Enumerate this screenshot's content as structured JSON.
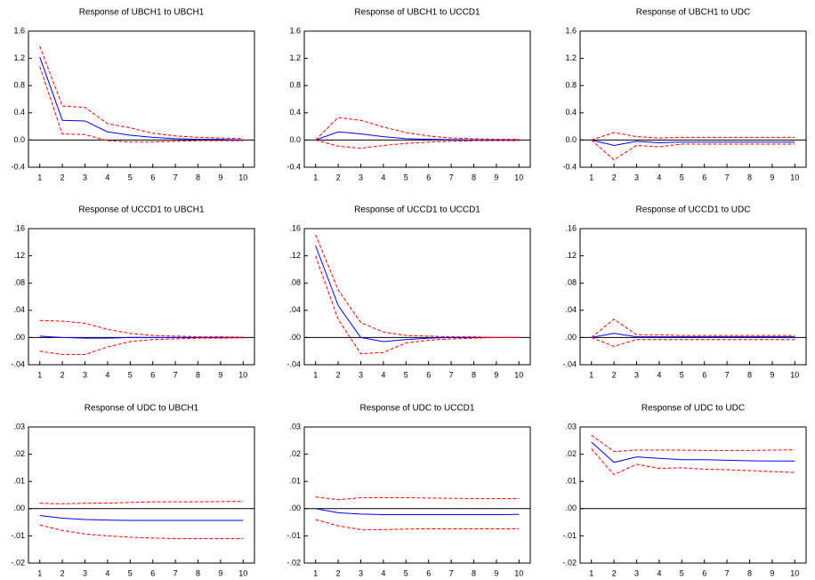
{
  "chart_data": [
    {
      "type": "line",
      "title": "Response of UBCH1 to UBCH1",
      "x": [
        1,
        2,
        3,
        4,
        5,
        6,
        7,
        8,
        9,
        10
      ],
      "xlim": [
        0.5,
        10.5
      ],
      "xticks": [
        1,
        2,
        3,
        4,
        5,
        6,
        7,
        8,
        9,
        10
      ],
      "ylim": [
        -0.4,
        1.6
      ],
      "yticks": [
        {
          "value": -0.4,
          "label": "-0.4"
        },
        {
          "value": 0,
          "label": "0.0"
        },
        {
          "value": 0.4,
          "label": "0.4"
        },
        {
          "value": 0.8,
          "label": "0.8"
        },
        {
          "value": 1.2,
          "label": "1.2"
        },
        {
          "value": 1.6,
          "label": "1.6"
        }
      ],
      "zero_line": true,
      "series": [
        {
          "color": "#0000ff",
          "dashed": false,
          "values": [
            1.22,
            0.29,
            0.28,
            0.12,
            0.07,
            0.04,
            0.02,
            0.01,
            0.01,
            0.0
          ]
        },
        {
          "color": "#ff0000",
          "dashed": true,
          "values": [
            1.38,
            0.5,
            0.48,
            0.24,
            0.18,
            0.1,
            0.06,
            0.04,
            0.03,
            0.02
          ]
        },
        {
          "color": "#ff0000",
          "dashed": true,
          "values": [
            1.08,
            0.09,
            0.08,
            -0.01,
            -0.03,
            -0.03,
            -0.02,
            -0.01,
            -0.01,
            -0.01
          ]
        }
      ]
    },
    {
      "type": "line",
      "title": "Response of UBCH1 to UCCD1",
      "x": [
        1,
        2,
        3,
        4,
        5,
        6,
        7,
        8,
        9,
        10
      ],
      "xlim": [
        0.5,
        10.5
      ],
      "xticks": [
        1,
        2,
        3,
        4,
        5,
        6,
        7,
        8,
        9,
        10
      ],
      "ylim": [
        -0.4,
        1.6
      ],
      "yticks": [
        {
          "value": -0.4,
          "label": "-0.4"
        },
        {
          "value": 0,
          "label": "0.0"
        },
        {
          "value": 0.4,
          "label": "0.4"
        },
        {
          "value": 0.8,
          "label": "0.8"
        },
        {
          "value": 1.2,
          "label": "1.2"
        },
        {
          "value": 1.6,
          "label": "1.6"
        }
      ],
      "zero_line": true,
      "series": [
        {
          "color": "#0000ff",
          "dashed": false,
          "values": [
            0,
            0.12,
            0.09,
            0.05,
            0.02,
            0.01,
            0.005,
            0,
            0,
            0
          ]
        },
        {
          "color": "#ff0000",
          "dashed": true,
          "values": [
            0,
            0.33,
            0.29,
            0.19,
            0.11,
            0.06,
            0.03,
            0.02,
            0.01,
            0.01
          ]
        },
        {
          "color": "#ff0000",
          "dashed": true,
          "values": [
            0,
            -0.09,
            -0.12,
            -0.08,
            -0.05,
            -0.03,
            -0.02,
            -0.01,
            -0.01,
            -0.01
          ]
        }
      ]
    },
    {
      "type": "line",
      "title": "Response of UBCH1 to UDC",
      "x": [
        1,
        2,
        3,
        4,
        5,
        6,
        7,
        8,
        9,
        10
      ],
      "xlim": [
        0.5,
        10.5
      ],
      "xticks": [
        1,
        2,
        3,
        4,
        5,
        6,
        7,
        8,
        9,
        10
      ],
      "ylim": [
        -0.4,
        1.6
      ],
      "yticks": [
        {
          "value": -0.4,
          "label": "-0.4"
        },
        {
          "value": 0,
          "label": "0.0"
        },
        {
          "value": 0.4,
          "label": "0.4"
        },
        {
          "value": 0.8,
          "label": "0.8"
        },
        {
          "value": 1.2,
          "label": "1.2"
        },
        {
          "value": 1.6,
          "label": "1.6"
        }
      ],
      "zero_line": true,
      "series": [
        {
          "color": "#0000ff",
          "dashed": false,
          "values": [
            0,
            -0.08,
            -0.02,
            -0.04,
            -0.03,
            -0.03,
            -0.03,
            -0.03,
            -0.03,
            -0.03
          ]
        },
        {
          "color": "#ff0000",
          "dashed": true,
          "values": [
            0,
            0.11,
            0.05,
            0.03,
            0.04,
            0.04,
            0.04,
            0.04,
            0.04,
            0.04
          ]
        },
        {
          "color": "#ff0000",
          "dashed": true,
          "values": [
            0,
            -0.29,
            -0.08,
            -0.1,
            -0.06,
            -0.06,
            -0.06,
            -0.06,
            -0.06,
            -0.06
          ]
        }
      ]
    },
    {
      "type": "line",
      "title": "Response of UCCD1 to UBCH1",
      "x": [
        1,
        2,
        3,
        4,
        5,
        6,
        7,
        8,
        9,
        10
      ],
      "xlim": [
        0.5,
        10.5
      ],
      "xticks": [
        1,
        2,
        3,
        4,
        5,
        6,
        7,
        8,
        9,
        10
      ],
      "ylim": [
        -0.04,
        0.16
      ],
      "yticks": [
        {
          "value": -0.04,
          "label": "-.04"
        },
        {
          "value": 0,
          "label": ".00"
        },
        {
          "value": 0.04,
          "label": ".04"
        },
        {
          "value": 0.08,
          "label": ".08"
        },
        {
          "value": 0.12,
          "label": ".12"
        },
        {
          "value": 0.16,
          "label": ".16"
        }
      ],
      "zero_line": true,
      "series": [
        {
          "color": "#0000ff",
          "dashed": false,
          "values": [
            0.002,
            0.0,
            -0.001,
            -0.001,
            0,
            0,
            0,
            0,
            0,
            0
          ]
        },
        {
          "color": "#ff0000",
          "dashed": true,
          "values": [
            0.025,
            0.024,
            0.021,
            0.012,
            0.006,
            0.003,
            0.002,
            0.001,
            0.001,
            0.0005
          ]
        },
        {
          "color": "#ff0000",
          "dashed": true,
          "values": [
            -0.02,
            -0.025,
            -0.025,
            -0.014,
            -0.006,
            -0.003,
            -0.002,
            -0.001,
            -0.001,
            -0.0005
          ]
        }
      ]
    },
    {
      "type": "line",
      "title": "Response of UCCD1 to UCCD1",
      "x": [
        1,
        2,
        3,
        4,
        5,
        6,
        7,
        8,
        9,
        10
      ],
      "xlim": [
        0.5,
        10.5
      ],
      "xticks": [
        1,
        2,
        3,
        4,
        5,
        6,
        7,
        8,
        9,
        10
      ],
      "ylim": [
        -0.04,
        0.16
      ],
      "yticks": [
        {
          "value": -0.04,
          "label": "-.04"
        },
        {
          "value": 0,
          "label": ".00"
        },
        {
          "value": 0.04,
          "label": ".04"
        },
        {
          "value": 0.08,
          "label": ".08"
        },
        {
          "value": 0.12,
          "label": ".12"
        },
        {
          "value": 0.16,
          "label": ".16"
        }
      ],
      "zero_line": true,
      "series": [
        {
          "color": "#0000ff",
          "dashed": false,
          "values": [
            0.135,
            0.047,
            0.0,
            -0.006,
            -0.003,
            -0.001,
            0,
            0,
            0,
            0
          ]
        },
        {
          "color": "#ff0000",
          "dashed": true,
          "values": [
            0.151,
            0.07,
            0.022,
            0.008,
            0.003,
            0.002,
            0.001,
            0.001,
            0,
            0
          ]
        },
        {
          "color": "#ff0000",
          "dashed": true,
          "values": [
            0.12,
            0.027,
            -0.024,
            -0.022,
            -0.008,
            -0.004,
            -0.002,
            -0.001,
            0,
            0
          ]
        }
      ]
    },
    {
      "type": "line",
      "title": "Response of UCCD1 to UDC",
      "x": [
        1,
        2,
        3,
        4,
        5,
        6,
        7,
        8,
        9,
        10
      ],
      "xlim": [
        0.5,
        10.5
      ],
      "xticks": [
        1,
        2,
        3,
        4,
        5,
        6,
        7,
        8,
        9,
        10
      ],
      "ylim": [
        -0.04,
        0.16
      ],
      "yticks": [
        {
          "value": -0.04,
          "label": "-.04"
        },
        {
          "value": 0,
          "label": ".00"
        },
        {
          "value": 0.04,
          "label": ".04"
        },
        {
          "value": 0.08,
          "label": ".08"
        },
        {
          "value": 0.12,
          "label": ".12"
        },
        {
          "value": 0.16,
          "label": ".16"
        }
      ],
      "zero_line": true,
      "series": [
        {
          "color": "#0000ff",
          "dashed": false,
          "values": [
            0,
            0.006,
            0.001,
            0.001,
            0.001,
            0.001,
            0.001,
            0.001,
            0.001,
            0.001
          ]
        },
        {
          "color": "#ff0000",
          "dashed": true,
          "values": [
            0,
            0.027,
            0.004,
            0.004,
            0.003,
            0.003,
            0.003,
            0.003,
            0.003,
            0.003
          ]
        },
        {
          "color": "#ff0000",
          "dashed": true,
          "values": [
            0,
            -0.013,
            -0.003,
            -0.003,
            -0.003,
            -0.003,
            -0.003,
            -0.003,
            -0.003,
            -0.003
          ]
        }
      ]
    },
    {
      "type": "line",
      "title": "Response of UDC to UBCH1",
      "x": [
        1,
        2,
        3,
        4,
        5,
        6,
        7,
        8,
        9,
        10
      ],
      "xlim": [
        0.5,
        10.5
      ],
      "xticks": [
        1,
        2,
        3,
        4,
        5,
        6,
        7,
        8,
        9,
        10
      ],
      "ylim": [
        -0.02,
        0.03
      ],
      "yticks": [
        {
          "value": -0.02,
          "label": "-.02"
        },
        {
          "value": -0.01,
          "label": "-.01"
        },
        {
          "value": 0,
          "label": ".00"
        },
        {
          "value": 0.01,
          "label": ".01"
        },
        {
          "value": 0.02,
          "label": ".02"
        },
        {
          "value": 0.03,
          "label": ".03"
        }
      ],
      "zero_line": true,
      "series": [
        {
          "color": "#0000ff",
          "dashed": false,
          "values": [
            -0.0025,
            -0.0035,
            -0.004,
            -0.0042,
            -0.0043,
            -0.0043,
            -0.0043,
            -0.0043,
            -0.0043,
            -0.0043
          ]
        },
        {
          "color": "#ff0000",
          "dashed": true,
          "values": [
            0.002,
            0.0018,
            0.002,
            0.002,
            0.0023,
            0.0025,
            0.0025,
            0.0025,
            0.0026,
            0.0027
          ]
        },
        {
          "color": "#ff0000",
          "dashed": true,
          "values": [
            -0.006,
            -0.008,
            -0.0093,
            -0.01,
            -0.0105,
            -0.0108,
            -0.011,
            -0.011,
            -0.011,
            -0.011
          ]
        }
      ]
    },
    {
      "type": "line",
      "title": "Response of UDC to UCCD1",
      "x": [
        1,
        2,
        3,
        4,
        5,
        6,
        7,
        8,
        9,
        10
      ],
      "xlim": [
        0.5,
        10.5
      ],
      "xticks": [
        1,
        2,
        3,
        4,
        5,
        6,
        7,
        8,
        9,
        10
      ],
      "ylim": [
        -0.02,
        0.03
      ],
      "yticks": [
        {
          "value": -0.02,
          "label": "-.02"
        },
        {
          "value": -0.01,
          "label": "-.01"
        },
        {
          "value": 0,
          "label": ".00"
        },
        {
          "value": 0.01,
          "label": ".01"
        },
        {
          "value": 0.02,
          "label": ".02"
        },
        {
          "value": 0.03,
          "label": ".03"
        }
      ],
      "zero_line": true,
      "series": [
        {
          "color": "#0000ff",
          "dashed": false,
          "values": [
            0,
            -0.0015,
            -0.002,
            -0.0022,
            -0.0022,
            -0.0022,
            -0.0022,
            -0.0022,
            -0.0022,
            -0.0021
          ]
        },
        {
          "color": "#ff0000",
          "dashed": true,
          "values": [
            0.0043,
            0.0033,
            0.004,
            0.004,
            0.004,
            0.0039,
            0.0038,
            0.0037,
            0.0037,
            0.0037
          ]
        },
        {
          "color": "#ff0000",
          "dashed": true,
          "values": [
            -0.004,
            -0.0063,
            -0.0077,
            -0.0077,
            -0.0075,
            -0.0074,
            -0.0074,
            -0.0074,
            -0.0074,
            -0.0074
          ]
        }
      ]
    },
    {
      "type": "line",
      "title": "Response of UDC to UDC",
      "x": [
        1,
        2,
        3,
        4,
        5,
        6,
        7,
        8,
        9,
        10
      ],
      "xlim": [
        0.5,
        10.5
      ],
      "xticks": [
        1,
        2,
        3,
        4,
        5,
        6,
        7,
        8,
        9,
        10
      ],
      "ylim": [
        -0.02,
        0.03
      ],
      "yticks": [
        {
          "value": -0.02,
          "label": "-.02"
        },
        {
          "value": -0.01,
          "label": "-.01"
        },
        {
          "value": 0,
          "label": ".00"
        },
        {
          "value": 0.01,
          "label": ".01"
        },
        {
          "value": 0.02,
          "label": ".02"
        },
        {
          "value": 0.03,
          "label": ".03"
        }
      ],
      "zero_line": true,
      "series": [
        {
          "color": "#0000ff",
          "dashed": false,
          "values": [
            0.0245,
            0.017,
            0.019,
            0.0185,
            0.018,
            0.018,
            0.0178,
            0.0176,
            0.0175,
            0.0175
          ]
        },
        {
          "color": "#ff0000",
          "dashed": true,
          "values": [
            0.027,
            0.021,
            0.0215,
            0.0215,
            0.0215,
            0.0214,
            0.0214,
            0.0214,
            0.0215,
            0.0216
          ]
        },
        {
          "color": "#ff0000",
          "dashed": true,
          "values": [
            0.022,
            0.0125,
            0.0163,
            0.0148,
            0.015,
            0.0145,
            0.0143,
            0.014,
            0.0136,
            0.0133
          ]
        }
      ]
    }
  ]
}
